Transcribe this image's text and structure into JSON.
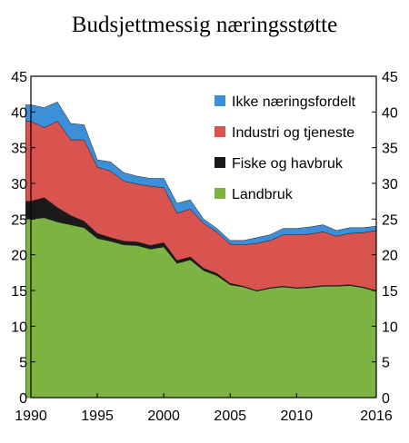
{
  "chart_data": {
    "type": "area",
    "stacked": true,
    "title": "Budsjettmessig næringsstøtte",
    "xlabel": "",
    "ylabel": "",
    "xlim": [
      1990,
      2016
    ],
    "ylim": [
      0,
      45
    ],
    "x_ticks": [
      1990,
      1995,
      2000,
      2005,
      2010,
      2016
    ],
    "y_ticks": [
      0,
      5,
      10,
      15,
      20,
      25,
      30,
      35,
      40,
      45
    ],
    "legend_position": "top-right",
    "grid": false,
    "x": [
      1989.6,
      1990,
      1991,
      1992,
      1993,
      1994,
      1995,
      1996,
      1997,
      1998,
      1999,
      2000,
      2001,
      2002,
      2003,
      2004,
      2005,
      2006,
      2007,
      2008,
      2009,
      2010,
      2011,
      2012,
      2013,
      2014,
      2015,
      2016
    ],
    "series": [
      {
        "name": "Landbruk",
        "color": "#7cb342",
        "values": [
          25.0,
          25.0,
          25.2,
          24.6,
          24.2,
          23.8,
          22.3,
          21.9,
          21.4,
          21.3,
          20.8,
          21.1,
          18.8,
          19.3,
          17.8,
          17.1,
          15.8,
          15.5,
          14.9,
          15.3,
          15.5,
          15.3,
          15.4,
          15.6,
          15.6,
          15.7,
          15.4,
          14.9
        ]
      },
      {
        "name": "Fiske og havbruk",
        "color": "#1a1a1a",
        "values": [
          2.5,
          2.5,
          2.8,
          2.0,
          1.3,
          0.9,
          0.7,
          0.5,
          0.5,
          0.5,
          0.5,
          0.6,
          0.4,
          0.4,
          0.3,
          0.3,
          0.2,
          0.1,
          0.1,
          0.1,
          0.1,
          0.1,
          0.1,
          0.1,
          0.1,
          0.1,
          0.1,
          0.1
        ]
      },
      {
        "name": "Industri og tjeneste",
        "color": "#d9534f",
        "values": [
          11.2,
          11.2,
          9.8,
          12.1,
          10.6,
          11.4,
          9.3,
          9.3,
          8.4,
          8.1,
          8.3,
          7.7,
          6.6,
          6.7,
          6.3,
          5.8,
          5.5,
          5.8,
          6.6,
          6.6,
          7.2,
          7.4,
          7.4,
          7.5,
          6.9,
          7.2,
          7.6,
          8.4
        ]
      },
      {
        "name": "Ikke næringsfordelt",
        "color": "#3d8fd9",
        "values": [
          2.3,
          2.3,
          2.8,
          2.7,
          2.3,
          2.1,
          1.0,
          1.3,
          1.2,
          1.1,
          1.1,
          1.3,
          1.4,
          1.3,
          0.6,
          0.5,
          0.5,
          0.6,
          0.8,
          0.8,
          0.9,
          0.9,
          1.0,
          1.0,
          0.8,
          0.8,
          0.7,
          0.6
        ]
      }
    ]
  }
}
